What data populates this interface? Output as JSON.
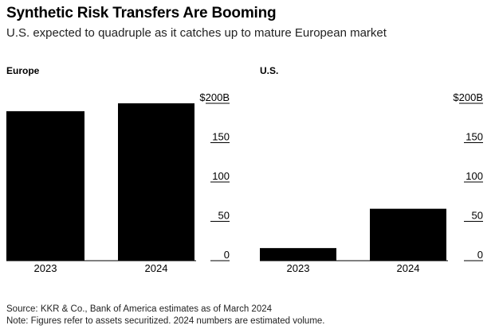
{
  "header": {
    "title": "Synthetic Risk Transfers Are Booming",
    "subtitle": "U.S. expected to quadruple as it catches up to mature European market"
  },
  "footer": {
    "source": "Source: KKR & Co., Bank of America estimates as of March 2024",
    "note": "Note: Figures refer to assets securitized. 2024 numbers are estimated volume."
  },
  "chart_data": [
    {
      "type": "bar",
      "title": "Europe",
      "categories": [
        "2023",
        "2024"
      ],
      "values": [
        190,
        200
      ],
      "ylim": [
        0,
        200
      ],
      "yticks": [
        0,
        50,
        100,
        150,
        200
      ],
      "ytick_labels": [
        "0",
        "50",
        "100",
        "150",
        "$200B"
      ],
      "grid": false,
      "bar_color": "#000000"
    },
    {
      "type": "bar",
      "title": "U.S.",
      "categories": [
        "2023",
        "2024"
      ],
      "values": [
        16,
        66
      ],
      "ylim": [
        0,
        200
      ],
      "yticks": [
        0,
        50,
        100,
        150,
        200
      ],
      "ytick_labels": [
        "0",
        "50",
        "100",
        "150",
        "$200B"
      ],
      "grid": false,
      "bar_color": "#000000"
    }
  ]
}
